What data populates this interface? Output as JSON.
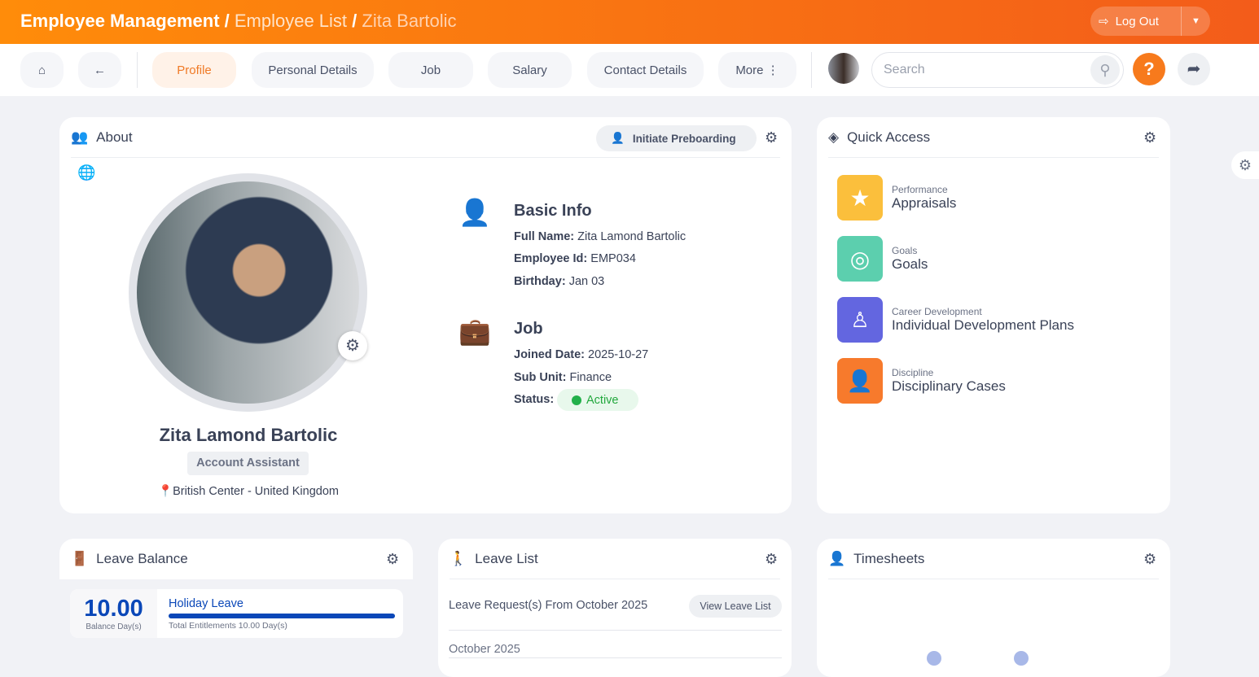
{
  "header": {
    "crumb1": "Employee Management",
    "crumb2": "Employee List",
    "crumb3": "Zita Bartolic",
    "logout": "Log Out"
  },
  "nav": {
    "tabs": [
      "Profile",
      "Personal Details",
      "Job",
      "Salary",
      "Contact Details",
      "More"
    ],
    "active": "Profile",
    "search_placeholder": "Search"
  },
  "about": {
    "title": "About",
    "preboard": "Initiate Preboarding",
    "name": "Zita Lamond Bartolic",
    "role": "Account Assistant",
    "location": "British Center - United Kingdom",
    "basic_title": "Basic Info",
    "full_name_label": "Full Name:",
    "full_name": "Zita Lamond Bartolic",
    "emp_id_label": "Employee Id:",
    "emp_id": "EMP034",
    "birthday_label": "Birthday:",
    "birthday": "Jan 03",
    "job_title": "Job",
    "joined_label": "Joined Date:",
    "joined": "2025-10-27",
    "subunit_label": "Sub Unit:",
    "subunit": "Finance",
    "status_label": "Status:",
    "status": "Active"
  },
  "quick": {
    "title": "Quick Access",
    "items": [
      {
        "cat": "Performance",
        "label": "Appraisals",
        "color": "#fbbf3c",
        "icon": "star-icon"
      },
      {
        "cat": "Goals",
        "label": "Goals",
        "color": "#5ccfae",
        "icon": "target-icon"
      },
      {
        "cat": "Career Development",
        "label": "Individual Development Plans",
        "color": "#6366e0",
        "icon": "hand-person-icon"
      },
      {
        "cat": "Discipline",
        "label": "Disciplinary Cases",
        "color": "#f77a2c",
        "icon": "person-icon"
      }
    ]
  },
  "leave_balance": {
    "title": "Leave Balance",
    "value": "10.00",
    "value_label": "Balance Day(s)",
    "type": "Holiday Leave",
    "entitlement": "Total Entitlements 10.00 Day(s)",
    "progress_pct": 100
  },
  "leave_list": {
    "title": "Leave List",
    "request_text": "Leave Request(s) From October 2025",
    "view_button": "View Leave List",
    "month": "October 2025"
  },
  "timesheets": {
    "title": "Timesheets"
  }
}
